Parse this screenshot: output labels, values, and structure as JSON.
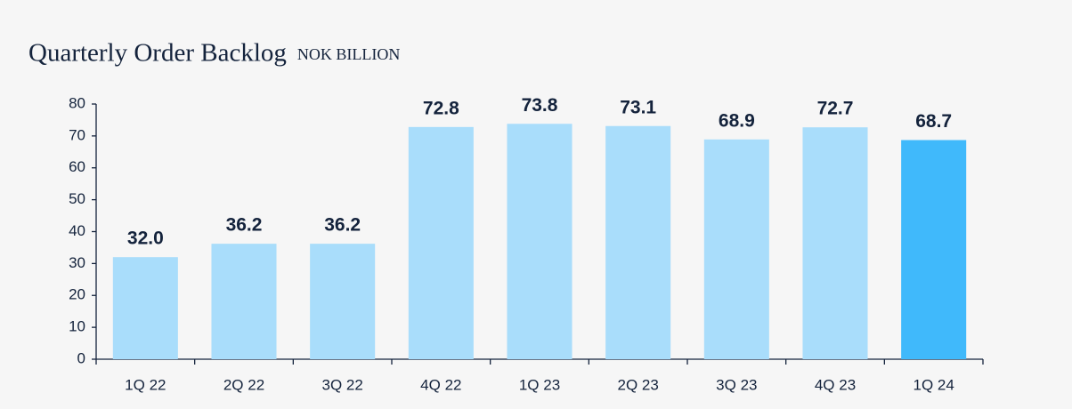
{
  "chart_data": {
    "type": "bar",
    "title": "Quarterly Order Backlog",
    "subtitle": "NOK BILLION",
    "categories": [
      "1Q 22",
      "2Q 22",
      "3Q 22",
      "4Q 22",
      "1Q 23",
      "2Q 23",
      "3Q 23",
      "4Q 23",
      "1Q 24"
    ],
    "values": [
      32.0,
      36.2,
      36.2,
      72.8,
      73.8,
      73.1,
      68.9,
      72.7,
      68.7
    ],
    "value_labels": [
      "32.0",
      "36.2",
      "36.2",
      "72.8",
      "73.8",
      "73.1",
      "68.9",
      "72.7",
      "68.7"
    ],
    "colors": [
      "#a9ddfb",
      "#a9ddfb",
      "#a9ddfb",
      "#a9ddfb",
      "#a9ddfb",
      "#a9ddfb",
      "#a9ddfb",
      "#a9ddfb",
      "#40b9fb"
    ],
    "ylim": [
      0,
      80
    ],
    "yticks": [
      0,
      10,
      20,
      30,
      40,
      50,
      60,
      70,
      80
    ],
    "grid": false
  }
}
